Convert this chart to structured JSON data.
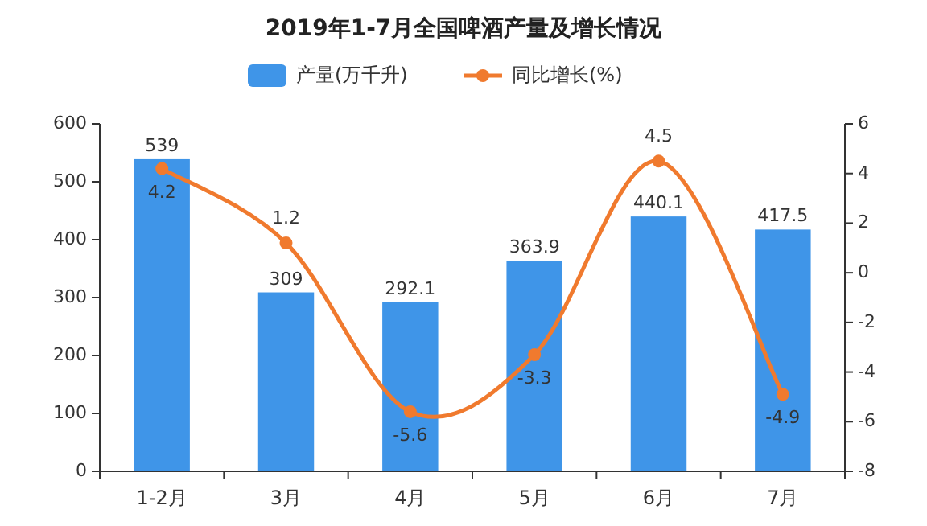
{
  "chart_data": {
    "type": "bar",
    "title": "2019年1-7月全国啤酒产量及增长情况",
    "categories": [
      "1-2月",
      "3月",
      "4月",
      "5月",
      "6月",
      "7月"
    ],
    "series": [
      {
        "name": "产量(万千升)",
        "color": "#3f95e8",
        "values": [
          539,
          309,
          292.1,
          363.9,
          440.1,
          417.5
        ]
      },
      {
        "name": "同比增长(%)",
        "type": "line",
        "axis": "y2",
        "color": "#f07a2e",
        "values": [
          4.2,
          1.2,
          -5.6,
          -3.3,
          4.5,
          -4.9
        ]
      }
    ],
    "ylim": [
      0,
      600
    ],
    "yticks": [
      0,
      100,
      200,
      300,
      400,
      500,
      600
    ],
    "y2lim": [
      -8,
      6
    ],
    "y2ticks": [
      -8,
      -6,
      -4,
      -2,
      0,
      2,
      4,
      6
    ],
    "data_labels": true,
    "legend": "top",
    "marker": "circle",
    "line_style": "solid"
  }
}
